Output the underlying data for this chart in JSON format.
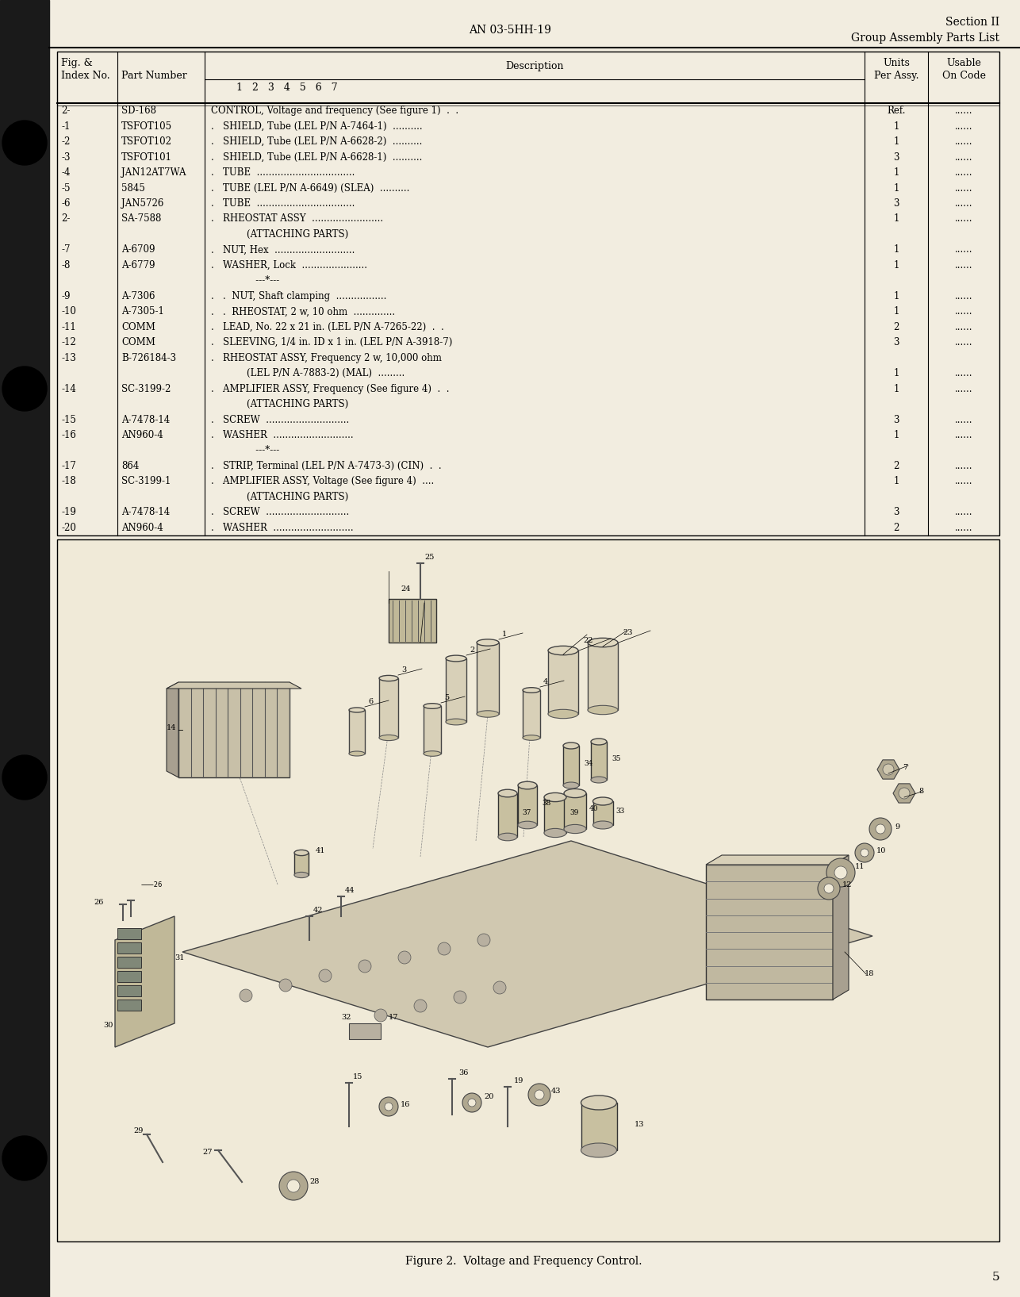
{
  "bg_color": "#f2ede0",
  "header_center": "AN 03-5HH-19",
  "header_right_line1": "Section II",
  "header_right_line2": "Group Assembly Parts List",
  "page_number": "5",
  "rows": [
    {
      "fig": "2-",
      "part": "SD-168",
      "desc": "CONTROL, Voltage and frequency (See figure 1)  .  .",
      "units": "Ref.",
      "usable": "......",
      "extra": ""
    },
    {
      "fig": "-1",
      "part": "TSFOT105",
      "desc": ".   SHIELD, Tube (LEL P/N A-7464-1)  ..........",
      "units": "1",
      "usable": "......",
      "extra": ""
    },
    {
      "fig": "-2",
      "part": "TSFOT102",
      "desc": ".   SHIELD, Tube (LEL P/N A-6628-2)  ..........",
      "units": "1",
      "usable": "......",
      "extra": ""
    },
    {
      "fig": "-3",
      "part": "TSFOT101",
      "desc": ".   SHIELD, Tube (LEL P/N A-6628-1)  ..........",
      "units": "3",
      "usable": "......",
      "extra": ""
    },
    {
      "fig": "-4",
      "part": "JAN12AT7WA",
      "desc": ".   TUBE  .................................",
      "units": "1",
      "usable": "......",
      "extra": ""
    },
    {
      "fig": "-5",
      "part": "5845",
      "desc": ".   TUBE (LEL P/N A-6649) (SLEA)  ..........",
      "units": "1",
      "usable": "......",
      "extra": ""
    },
    {
      "fig": "-6",
      "part": "JAN5726",
      "desc": ".   TUBE  .................................",
      "units": "3",
      "usable": "......",
      "extra": ""
    },
    {
      "fig": "2-",
      "part": "SA-7588",
      "desc": ".   RHEOSTAT ASSY  ........................",
      "units": "1",
      "usable": "......",
      "extra": ""
    },
    {
      "fig": "",
      "part": "",
      "desc": "            (ATTACHING PARTS)",
      "units": "",
      "usable": "",
      "extra": ""
    },
    {
      "fig": "-7",
      "part": "A-6709",
      "desc": ".   NUT, Hex  ...........................",
      "units": "1",
      "usable": "......",
      "extra": ""
    },
    {
      "fig": "-8",
      "part": "A-6779",
      "desc": ".   WASHER, Lock  ......................",
      "units": "1",
      "usable": "......",
      "extra": ""
    },
    {
      "fig": "",
      "part": "",
      "desc": "               ---*---",
      "units": "",
      "usable": "",
      "extra": ""
    },
    {
      "fig": "-9",
      "part": "A-7306",
      "desc": ".   .  NUT, Shaft clamping  .................",
      "units": "1",
      "usable": "......",
      "extra": ""
    },
    {
      "fig": "-10",
      "part": "A-7305-1",
      "desc": ".   .  RHEOSTAT, 2 w, 10 ohm  ..............",
      "units": "1",
      "usable": "......",
      "extra": ""
    },
    {
      "fig": "-11",
      "part": "COMM",
      "desc": ".   LEAD, No. 22 x 21 in. (LEL P/N A-7265-22)  .  .",
      "units": "2",
      "usable": "......",
      "extra": ""
    },
    {
      "fig": "-12",
      "part": "COMM",
      "desc": ".   SLEEVING, 1/4 in. ID x 1 in. (LEL P/N A-3918-7)",
      "units": "3",
      "usable": "......",
      "extra": ""
    },
    {
      "fig": "-13",
      "part": "B-726184-3",
      "desc": ".   RHEOSTAT ASSY, Frequency 2 w, 10,000 ohm",
      "units": "",
      "usable": "",
      "extra": ""
    },
    {
      "fig": "",
      "part": "",
      "desc": "            (LEL P/N A-7883-2) (MAL)  .........",
      "units": "1",
      "usable": "......",
      "extra": ""
    },
    {
      "fig": "-14",
      "part": "SC-3199-2",
      "desc": ".   AMPLIFIER ASSY, Frequency (See figure 4)  .  .",
      "units": "1",
      "usable": "......",
      "extra": ""
    },
    {
      "fig": "",
      "part": "",
      "desc": "            (ATTACHING PARTS)",
      "units": "",
      "usable": "",
      "extra": ""
    },
    {
      "fig": "-15",
      "part": "A-7478-14",
      "desc": ".   SCREW  ............................",
      "units": "3",
      "usable": "......",
      "extra": ""
    },
    {
      "fig": "-16",
      "part": "AN960-4",
      "desc": ".   WASHER  ...........................",
      "units": "1",
      "usable": "......",
      "extra": ""
    },
    {
      "fig": "",
      "part": "",
      "desc": "               ---*---",
      "units": "",
      "usable": "",
      "extra": ""
    },
    {
      "fig": "-17",
      "part": "864",
      "desc": ".   STRIP, Terminal (LEL P/N A-7473-3) (CIN)  .  .",
      "units": "2",
      "usable": "......",
      "extra": ""
    },
    {
      "fig": "-18",
      "part": "SC-3199-1",
      "desc": ".   AMPLIFIER ASSY, Voltage (See figure 4)  ....",
      "units": "1",
      "usable": "......",
      "extra": ""
    },
    {
      "fig": "",
      "part": "",
      "desc": "            (ATTACHING PARTS)",
      "units": "",
      "usable": "",
      "extra": ""
    },
    {
      "fig": "-19",
      "part": "A-7478-14",
      "desc": ".   SCREW  ............................",
      "units": "3",
      "usable": "......",
      "extra": ""
    },
    {
      "fig": "-20",
      "part": "AN960-4",
      "desc": ".   WASHER  ...........................",
      "units": "2",
      "usable": "......",
      "extra": ""
    }
  ],
  "figure_caption": "Figure 2.  Voltage and Frequency Control."
}
